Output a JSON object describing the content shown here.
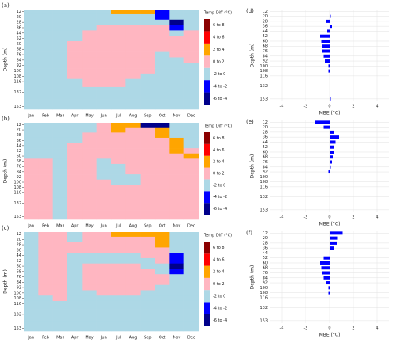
{
  "chart_data": [
    {
      "type": "heatmap",
      "panel_label": "(a)",
      "ylabel": "Depth (m)",
      "colorbar_title": "Temp Diff (°C)",
      "x": [
        "Jan",
        "Feb",
        "Mar",
        "Apr",
        "May",
        "Jun",
        "Jul",
        "Aug",
        "Sep",
        "Oct",
        "Nov",
        "Dec"
      ],
      "y": [
        12,
        20,
        28,
        36,
        44,
        52,
        60,
        68,
        76,
        84,
        92,
        100,
        108,
        116,
        132,
        153
      ],
      "ylim": [
        9,
        157
      ],
      "yticks": [
        12,
        20,
        28,
        36,
        44,
        52,
        60,
        68,
        76,
        84,
        92,
        100,
        108,
        116,
        132,
        153
      ],
      "bins": [
        -6,
        -4,
        -2,
        0,
        2,
        4,
        6,
        8
      ],
      "bin_labels": [
        "-6 to -4",
        "-4 to -2",
        "-2 to 0",
        "0 to 2",
        "2 to 4",
        "4 to 6",
        "6 to 8"
      ],
      "colors": [
        "#00008b",
        "#0000ff",
        "#add8e6",
        "#ffb6c1",
        "#ffa500",
        "#ff0000",
        "#8b0000"
      ],
      "z": [
        [
          -1,
          -1,
          -1,
          -1,
          -1,
          -1,
          3,
          3,
          3,
          -3,
          -1,
          -1
        ],
        [
          -1,
          -1,
          -1,
          -1,
          -1,
          -1,
          -1,
          -1,
          -1,
          -3,
          -1,
          -1
        ],
        [
          -1,
          -1,
          -1,
          -1,
          -1,
          -1,
          -1,
          -1,
          -1,
          -1,
          -5,
          -1
        ],
        [
          -1,
          -1,
          -1,
          -1,
          -1,
          1,
          1,
          1,
          1,
          1,
          -3,
          -1
        ],
        [
          -1,
          -1,
          -1,
          -1,
          1,
          1,
          1,
          1,
          1,
          1,
          -1,
          1
        ],
        [
          -1,
          -1,
          -1,
          -1,
          1,
          1,
          1,
          1,
          1,
          1,
          1,
          1
        ],
        [
          -1,
          -1,
          -1,
          1,
          1,
          1,
          1,
          1,
          1,
          1,
          1,
          1
        ],
        [
          -1,
          -1,
          -1,
          1,
          1,
          1,
          1,
          1,
          1,
          1,
          1,
          1
        ],
        [
          -1,
          -1,
          -1,
          1,
          1,
          1,
          1,
          1,
          1,
          -1,
          1,
          1
        ],
        [
          -1,
          -1,
          -1,
          1,
          1,
          1,
          1,
          1,
          1,
          -1,
          -1,
          1
        ],
        [
          -1,
          -1,
          -1,
          1,
          1,
          1,
          1,
          1,
          1,
          -1,
          -1,
          -1
        ],
        [
          -1,
          -1,
          -1,
          1,
          1,
          1,
          1,
          1,
          1,
          -1,
          -1,
          -1
        ],
        [
          -1,
          -1,
          -1,
          1,
          1,
          1,
          1,
          1,
          -1,
          -1,
          -1,
          -1
        ],
        [
          -1,
          -1,
          -1,
          -1,
          1,
          1,
          1,
          -1,
          -1,
          -1,
          -1,
          -1
        ],
        [
          -1,
          -1,
          -1,
          -1,
          -1,
          -1,
          -1,
          -1,
          -1,
          -1,
          -1,
          -1
        ],
        [
          -1,
          -1,
          -1,
          -1,
          -1,
          -1,
          -1,
          -1,
          -1,
          -1,
          -1,
          -1
        ]
      ]
    },
    {
      "type": "heatmap",
      "panel_label": "(b)",
      "ylabel": "Depth (m)",
      "colorbar_title": "Temp Diff (°C)",
      "x": [
        "Jan",
        "Feb",
        "Mar",
        "Apr",
        "May",
        "Jun",
        "Jul",
        "Aug",
        "Sep",
        "Oct",
        "Nov",
        "Dec"
      ],
      "y": [
        12,
        20,
        28,
        36,
        44,
        52,
        60,
        68,
        76,
        84,
        92,
        100,
        108,
        116,
        132,
        153
      ],
      "ylim": [
        9,
        157
      ],
      "yticks": [
        12,
        20,
        28,
        36,
        44,
        52,
        60,
        68,
        76,
        84,
        92,
        100,
        108,
        116,
        132,
        153
      ],
      "bins": [
        -6,
        -4,
        -2,
        0,
        2,
        4,
        6,
        8
      ],
      "bin_labels": [
        "-6 to -4",
        "-4 to -2",
        "-2 to 0",
        "0 to 2",
        "2 to 4",
        "4 to 6",
        "6 to 8"
      ],
      "colors": [
        "#00008b",
        "#0000ff",
        "#add8e6",
        "#ffb6c1",
        "#ffa500",
        "#ff0000",
        "#8b0000"
      ],
      "z": [
        [
          -1,
          -1,
          -1,
          -1,
          -1,
          1,
          3,
          3,
          -5,
          -5,
          -1,
          -1
        ],
        [
          -1,
          -1,
          -1,
          -1,
          -1,
          1,
          3,
          1,
          1,
          3,
          -1,
          -1
        ],
        [
          -1,
          -1,
          -1,
          -1,
          1,
          1,
          1,
          1,
          1,
          3,
          -1,
          -1
        ],
        [
          -1,
          -1,
          -1,
          -1,
          1,
          1,
          1,
          1,
          1,
          1,
          3,
          -1
        ],
        [
          -1,
          -1,
          -1,
          1,
          1,
          1,
          1,
          1,
          1,
          1,
          3,
          -1
        ],
        [
          -1,
          -1,
          -1,
          1,
          1,
          1,
          1,
          1,
          1,
          1,
          3,
          1
        ],
        [
          -1,
          -1,
          -1,
          1,
          1,
          1,
          1,
          1,
          1,
          1,
          1,
          3
        ],
        [
          1,
          1,
          -1,
          1,
          1,
          -1,
          1,
          1,
          1,
          1,
          1,
          1
        ],
        [
          1,
          1,
          -1,
          1,
          1,
          -1,
          -1,
          1,
          1,
          1,
          1,
          1
        ],
        [
          1,
          1,
          -1,
          1,
          1,
          -1,
          -1,
          1,
          1,
          1,
          1,
          1
        ],
        [
          1,
          1,
          -1,
          1,
          1,
          -1,
          -1,
          -1,
          1,
          1,
          1,
          1
        ],
        [
          1,
          1,
          -1,
          1,
          1,
          1,
          -1,
          -1,
          1,
          1,
          1,
          1
        ],
        [
          1,
          1,
          -1,
          1,
          1,
          1,
          1,
          1,
          1,
          1,
          1,
          1
        ],
        [
          1,
          1,
          -1,
          1,
          1,
          1,
          1,
          1,
          1,
          1,
          1,
          1
        ],
        [
          1,
          1,
          -1,
          1,
          1,
          1,
          1,
          1,
          1,
          1,
          1,
          1
        ],
        [
          1,
          1,
          -1,
          1,
          1,
          1,
          1,
          1,
          1,
          1,
          1,
          1
        ]
      ]
    },
    {
      "type": "heatmap",
      "panel_label": "(c)",
      "ylabel": "Depth (m)",
      "colorbar_title": "Temp Diff (°C)",
      "x": [
        "Jan",
        "Feb",
        "Mar",
        "Apr",
        "May",
        "Jun",
        "Jul",
        "Aug",
        "Sep",
        "Oct",
        "Nov",
        "Dec"
      ],
      "y": [
        12,
        20,
        28,
        36,
        44,
        52,
        60,
        68,
        76,
        84,
        92,
        100,
        108,
        116,
        132,
        153
      ],
      "ylim": [
        9,
        157
      ],
      "yticks": [
        12,
        20,
        28,
        36,
        44,
        52,
        60,
        68,
        76,
        84,
        92,
        100,
        108,
        116,
        132,
        153
      ],
      "bins": [
        -6,
        -4,
        -2,
        0,
        2,
        4,
        6,
        8
      ],
      "bin_labels": [
        "-6 to -4",
        "-4 to -2",
        "-2 to 0",
        "0 to 2",
        "2 to 4",
        "4 to 6",
        "6 to 8"
      ],
      "colors": [
        "#00008b",
        "#0000ff",
        "#add8e6",
        "#ffb6c1",
        "#ffa500",
        "#ff0000",
        "#8b0000"
      ],
      "z": [
        [
          -1,
          1,
          1,
          -1,
          1,
          1,
          3,
          3,
          3,
          3,
          -1,
          -1
        ],
        [
          -1,
          1,
          1,
          -1,
          1,
          1,
          1,
          1,
          1,
          3,
          -1,
          -1
        ],
        [
          -1,
          1,
          1,
          1,
          1,
          1,
          1,
          1,
          1,
          3,
          -1,
          -1
        ],
        [
          -1,
          1,
          1,
          1,
          1,
          1,
          1,
          1,
          1,
          1,
          -1,
          -1
        ],
        [
          -1,
          1,
          1,
          -1,
          -1,
          -1,
          -1,
          -1,
          1,
          1,
          -3,
          -1
        ],
        [
          -1,
          1,
          1,
          -1,
          -1,
          -1,
          -1,
          -1,
          -1,
          1,
          -3,
          -1
        ],
        [
          -1,
          1,
          1,
          -1,
          1,
          1,
          1,
          1,
          -1,
          -1,
          -5,
          -1
        ],
        [
          -1,
          1,
          1,
          -1,
          1,
          1,
          1,
          1,
          1,
          -1,
          -3,
          -1
        ],
        [
          -1,
          1,
          1,
          -1,
          1,
          1,
          1,
          1,
          1,
          1,
          -1,
          -1
        ],
        [
          -1,
          1,
          1,
          -1,
          1,
          1,
          1,
          1,
          1,
          1,
          -1,
          -1
        ],
        [
          -1,
          1,
          1,
          -1,
          1,
          1,
          1,
          1,
          1,
          -1,
          -1,
          -1
        ],
        [
          -1,
          1,
          1,
          -1,
          -1,
          1,
          1,
          1,
          -1,
          -1,
          -1,
          -1
        ],
        [
          -1,
          -1,
          1,
          -1,
          -1,
          -1,
          -1,
          -1,
          -1,
          -1,
          -1,
          -1
        ],
        [
          -1,
          -1,
          -1,
          -1,
          -1,
          -1,
          -1,
          -1,
          -1,
          -1,
          -1,
          -1
        ],
        [
          -1,
          -1,
          -1,
          -1,
          -1,
          -1,
          -1,
          -1,
          -1,
          -1,
          -1,
          -1
        ],
        [
          -1,
          -1,
          -1,
          -1,
          -1,
          -1,
          -1,
          -1,
          -1,
          -1,
          -1,
          -1
        ]
      ]
    },
    {
      "type": "barh",
      "panel_label": "(d)",
      "ylabel": "Depth (m)",
      "xlabel": "MBE (°C)",
      "color": "#0000ff",
      "grid": true,
      "categories": [
        12,
        20,
        28,
        36,
        44,
        52,
        60,
        68,
        76,
        84,
        92,
        100,
        108,
        116,
        132,
        153
      ],
      "values": [
        0.05,
        0.1,
        -0.3,
        0.2,
        -0.2,
        -0.8,
        -0.7,
        -0.6,
        -0.6,
        -0.5,
        -0.4,
        -0.1,
        -0.1,
        0.05,
        0.05,
        0.1
      ],
      "xlim": [
        -5,
        5
      ],
      "xticks": [
        -4,
        -2,
        0,
        2,
        4
      ],
      "ylim": [
        157,
        9
      ],
      "yticks": [
        12,
        20,
        28,
        36,
        44,
        52,
        60,
        68,
        76,
        84,
        92,
        100,
        108,
        116,
        132,
        153
      ]
    },
    {
      "type": "barh",
      "panel_label": "(e)",
      "ylabel": "Depth (m)",
      "xlabel": "MBE (°C)",
      "color": "#0000ff",
      "grid": true,
      "categories": [
        12,
        20,
        28,
        36,
        44,
        52,
        60,
        68,
        76,
        84,
        92,
        100,
        108,
        116,
        132,
        153
      ],
      "values": [
        -1.2,
        -0.5,
        0.4,
        0.8,
        0.5,
        0.4,
        0.4,
        0.3,
        0.2,
        0.1,
        -0.1,
        0.05,
        0.05,
        0.05,
        0.05,
        0.05
      ],
      "xlim": [
        -5,
        5
      ],
      "xticks": [
        -4,
        -2,
        0,
        2,
        4
      ],
      "ylim": [
        157,
        9
      ],
      "yticks": [
        12,
        20,
        28,
        36,
        44,
        52,
        60,
        68,
        76,
        84,
        92,
        100,
        108,
        116,
        132,
        153
      ]
    },
    {
      "type": "barh",
      "panel_label": "(f)",
      "ylabel": "Depth (m)",
      "xlabel": "MBE (°C)",
      "color": "#0000ff",
      "grid": true,
      "categories": [
        12,
        20,
        28,
        36,
        44,
        52,
        60,
        68,
        76,
        84,
        92,
        100,
        108,
        116,
        132,
        153
      ],
      "values": [
        1.1,
        0.7,
        0.6,
        0.4,
        0.05,
        -0.5,
        -0.8,
        -0.7,
        -0.6,
        -0.5,
        -0.3,
        -0.1,
        -0.1,
        0.05,
        0.05,
        0.05
      ],
      "xlim": [
        -5,
        5
      ],
      "xticks": [
        -4,
        -2,
        0,
        2,
        4
      ],
      "ylim": [
        157,
        9
      ],
      "yticks": [
        12,
        20,
        28,
        36,
        44,
        52,
        60,
        68,
        76,
        84,
        92,
        100,
        108,
        116,
        132,
        153
      ]
    }
  ]
}
